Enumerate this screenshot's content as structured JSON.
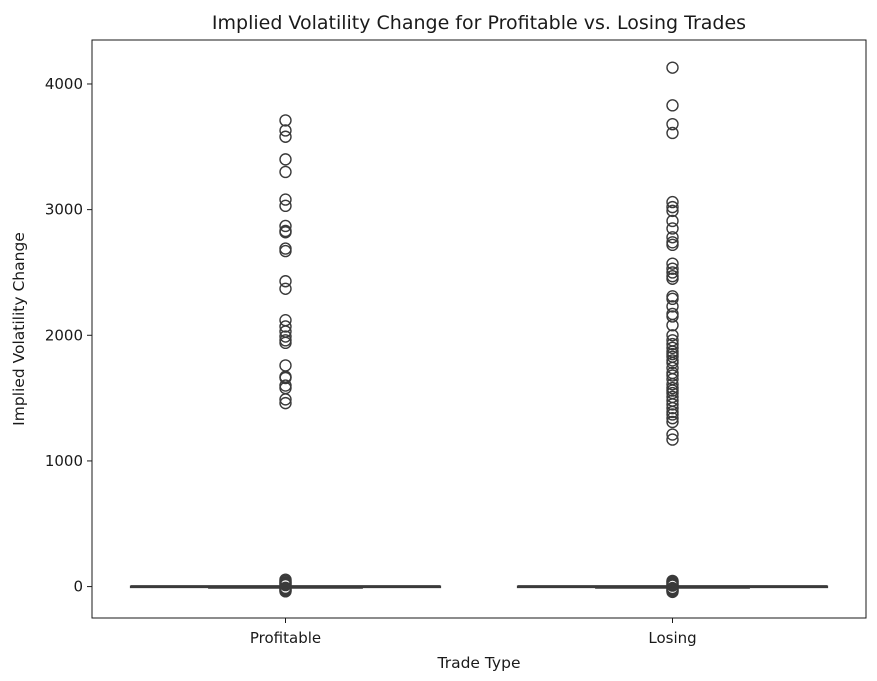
{
  "chart_data": {
    "type": "box",
    "title": "Implied Volatility Change for Profitable vs. Losing Trades",
    "xlabel": "Trade Type",
    "ylabel": "Implied Volatility Change",
    "categories": [
      "Profitable",
      "Losing"
    ],
    "ylim": [
      -250,
      4350
    ],
    "yticks": [
      0,
      1000,
      2000,
      3000,
      4000
    ],
    "grid": false,
    "legend": "none",
    "box_color": "#3a3a3a",
    "series": [
      {
        "category": "Profitable",
        "whisker_low": -5,
        "q1": -2,
        "median": 0,
        "q3": 2,
        "whisker_high": 5,
        "outliers_high": [
          3710,
          3630,
          3580,
          3400,
          3300,
          3080,
          3030,
          2870,
          2830,
          2820,
          2690,
          2670,
          2430,
          2370,
          2120,
          2070,
          2030,
          1990,
          1960,
          1940,
          1760,
          1670,
          1660,
          1600,
          1580,
          1490,
          1460
        ],
        "outliers_near_zero": [
          55,
          45,
          35,
          28,
          20,
          12,
          -10,
          -18,
          -25,
          -32,
          -38
        ]
      },
      {
        "category": "Losing",
        "whisker_low": -5,
        "q1": -2,
        "median": 0,
        "q3": 2,
        "whisker_high": 5,
        "outliers_high": [
          4130,
          3830,
          3680,
          3610,
          3060,
          3020,
          2990,
          2910,
          2850,
          2780,
          2740,
          2720,
          2570,
          2530,
          2500,
          2470,
          2450,
          2310,
          2290,
          2230,
          2170,
          2150,
          2080,
          2000,
          1960,
          1930,
          1900,
          1870,
          1850,
          1830,
          1800,
          1780,
          1740,
          1700,
          1680,
          1650,
          1610,
          1580,
          1560,
          1540,
          1510,
          1480,
          1450,
          1420,
          1390,
          1370,
          1340,
          1310,
          1210,
          1170
        ],
        "outliers_near_zero": [
          45,
          38,
          30,
          22,
          15,
          8,
          -12,
          -20,
          -28,
          -35,
          -42
        ]
      }
    ]
  }
}
